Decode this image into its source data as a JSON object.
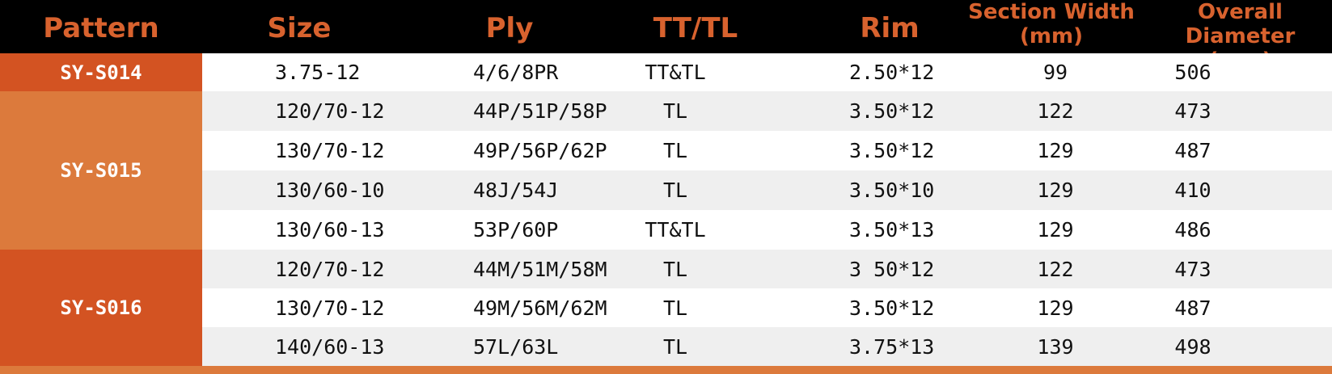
{
  "colors": {
    "header_bg": "#000000",
    "header_text": "#d8622e",
    "pattern_dark": "#d35322",
    "pattern_light": "#dc7a3c",
    "row_alt": "#efefef"
  },
  "headers": {
    "pattern": "Pattern",
    "size": "Size",
    "ply": "Ply",
    "tt_tl": "TT/TL",
    "rim": "Rim",
    "section_width_1": "Section Width",
    "section_width_2": "(mm)",
    "overall_diameter_1": "Overall Diameter",
    "overall_diameter_2": "(mm)"
  },
  "patterns": [
    "SY-S014",
    "SY-S015",
    "SY-S016"
  ],
  "rows": [
    {
      "size": "3.75-12",
      "ply": "4/6/8PR",
      "tt": "TT&TL",
      "rim": "2.50*12",
      "sw": "99",
      "od": "506"
    },
    {
      "size": "120/70-12",
      "ply": "44P/51P/58P",
      "tt": "TL",
      "rim": "3.50*12",
      "sw": "122",
      "od": "473"
    },
    {
      "size": "130/70-12",
      "ply": "49P/56P/62P",
      "tt": "TL",
      "rim": "3.50*12",
      "sw": "129",
      "od": "487"
    },
    {
      "size": "130/60-10",
      "ply": "48J/54J",
      "tt": "TL",
      "rim": "3.50*10",
      "sw": "129",
      "od": "410"
    },
    {
      "size": "130/60-13",
      "ply": "53P/60P",
      "tt": "TT&TL",
      "rim": "3.50*13",
      "sw": "129",
      "od": "486"
    },
    {
      "size": "120/70-12",
      "ply": "44M/51M/58M",
      "tt": "TL",
      "rim": "3 50*12",
      "sw": "122",
      "od": "473"
    },
    {
      "size": "130/70-12",
      "ply": "49M/56M/62M",
      "tt": "TL",
      "rim": "3.50*12",
      "sw": "129",
      "od": "487"
    },
    {
      "size": "140/60-13",
      "ply": "57L/63L",
      "tt": "TL",
      "rim": "3.75*13",
      "sw": "139",
      "od": "498"
    }
  ]
}
